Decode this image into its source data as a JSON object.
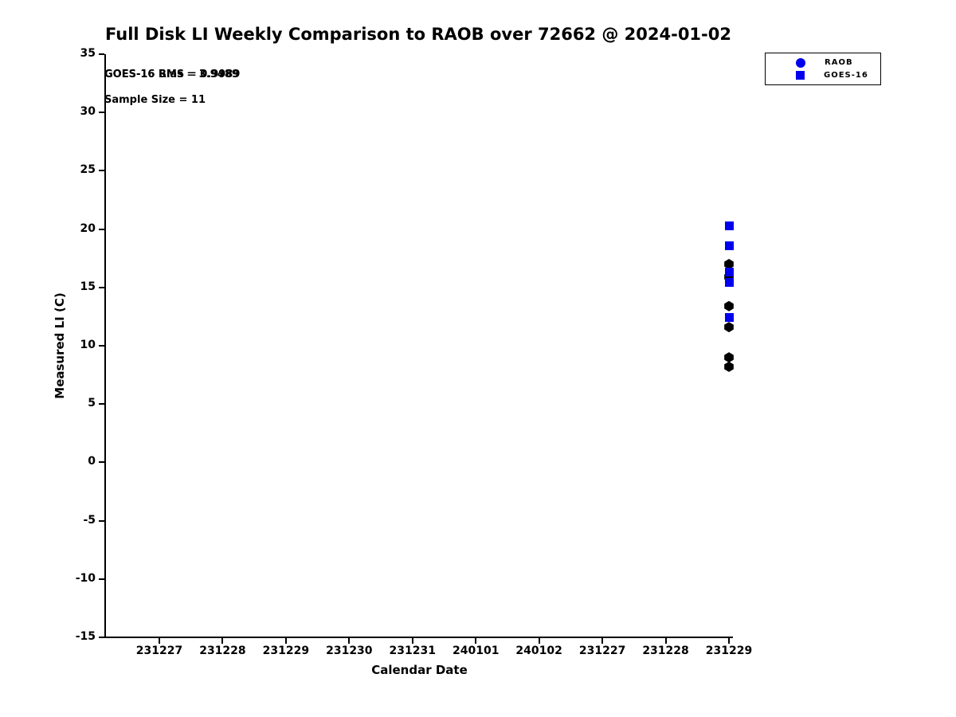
{
  "title": "Full Disk LI Weekly Comparison to RAOB over 72662 @ 2024-01-02",
  "annotations": {
    "rms_label": "GOES-16 RMS = 0.9989",
    "bias_label": "GOES-16 Bias = 3.9489",
    "sample_size_label": "Sample Size = 11"
  },
  "colors": {
    "series_blue": "#0000ee",
    "raob_plot_black": "#000000",
    "axis_black": "#000000"
  },
  "chart_data": {
    "type": "scatter",
    "title": "Full Disk LI Weekly Comparison to RAOB over 72662 @ 2024-01-02",
    "xlabel": "Calendar Date",
    "ylabel": "Measured LI (C)",
    "ylim": [
      -15,
      35
    ],
    "yticks": [
      35,
      30,
      25,
      20,
      15,
      10,
      5,
      0,
      -5,
      -10,
      -15
    ],
    "xticklabels": [
      "231227",
      "231228",
      "231229",
      "231230",
      "231231",
      "240101",
      "240102",
      "231227",
      "231228",
      "231229"
    ],
    "grid": false,
    "legend_position": "top-right",
    "series": [
      {
        "name": "RAOB",
        "marker": "circle",
        "plot_color": "#000000",
        "legend_color": "#0000ee",
        "x_tick_label": "231229",
        "x_tick_index": 9,
        "values": [
          17.0,
          15.9,
          13.4,
          11.6,
          9.0,
          8.2
        ]
      },
      {
        "name": "GOES-16",
        "marker": "square",
        "plot_color": "#0000ee",
        "legend_color": "#0000ee",
        "x_tick_label": "231229",
        "x_tick_index": 9,
        "values": [
          20.3,
          18.6,
          16.3,
          15.4,
          12.4
        ]
      }
    ]
  }
}
